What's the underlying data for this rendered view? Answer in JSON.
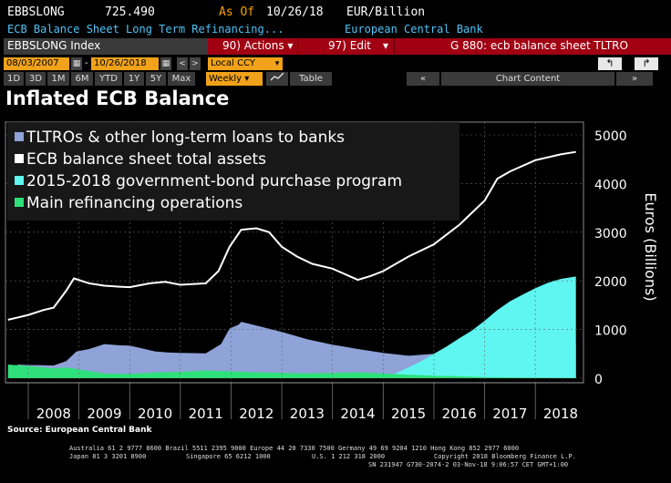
{
  "header": {
    "ticker": "EBBSLONG",
    "value": "725.490",
    "asof": "As Of",
    "date": "10/26/18",
    "units": "EUR/Billion",
    "description": "ECB Balance Sheet Long Term Refinancing...",
    "source_bank": "European Central Bank"
  },
  "toolbar": {
    "index_label": "EBBSLONG Index",
    "actions_label": "90) Actions ▾",
    "edit_label": "97) Edit",
    "edit_arrow": "▾",
    "chart_name": "G 880: ecb balance sheet TLTRO"
  },
  "range": {
    "start": "08/03/2007",
    "end": "10/26/2018",
    "currency": "Local CCY",
    "cal_glyph": "▦",
    "prev": "<",
    "next": ">",
    "dropdown": "▾",
    "undo_glyph": "↰",
    "redo_glyph": "↱"
  },
  "periods": [
    "1D",
    "3D",
    "1M",
    "6M",
    "YTD",
    "1Y",
    "5Y",
    "Max"
  ],
  "frequency": "Weekly ▾",
  "table_label": "Table",
  "chart_content_label": "Chart Content",
  "chart_content_arrows": "«",
  "chart_content_right": "»",
  "page_title": "Inflated ECB Balance",
  "source": "Source: European Central Bank",
  "footer": {
    "line1": "Australia 61 2 9777 8600 Brazil 5511 2395 9000 Europe 44 20 7330 7500 Germany 49 69 9204 1210 Hong Kong 852 2977 6000",
    "line2a": "Japan 81 3 3201 8900",
    "line2b": "Singapore 65 6212 1000",
    "line2c": "U.S. 1 212 318 2000",
    "line2d": "Copyright 2018 Bloomberg Finance L.P.",
    "line3": "SN 231947 G730-2074-2 03-Nov-18   9:06:57 CET   GMT+1:00"
  },
  "colors": {
    "tltro": "#8fa3d8",
    "total_assets": "#ffffff",
    "bond_program": "#5ff5f0",
    "mro": "#2fe07a",
    "accent": "#f0a21a",
    "actionbar": "#a00012"
  },
  "chart_data": {
    "type": "area",
    "ylabel": "Euros (Billions)",
    "ylim": [
      0,
      5000
    ],
    "yticks": [
      0,
      1000,
      2000,
      3000,
      4000,
      5000
    ],
    "xticks": [
      "2008",
      "2009",
      "2010",
      "2011",
      "2012",
      "2013",
      "2014",
      "2015",
      "2016",
      "2017",
      "2018"
    ],
    "legend_position": "top-left",
    "series": [
      {
        "name": "TLTROs & other long-term loans to banks",
        "kind": "area",
        "color": "#8fa3d8",
        "points": [
          [
            2007.6,
            150
          ],
          [
            2007.8,
            280
          ],
          [
            2008.0,
            270
          ],
          [
            2008.2,
            270
          ],
          [
            2008.5,
            260
          ],
          [
            2008.75,
            350
          ],
          [
            2008.95,
            550
          ],
          [
            2009.2,
            600
          ],
          [
            2009.5,
            700
          ],
          [
            2009.75,
            680
          ],
          [
            2010.0,
            670
          ],
          [
            2010.5,
            550
          ],
          [
            2010.75,
            530
          ],
          [
            2011.0,
            520
          ],
          [
            2011.5,
            510
          ],
          [
            2011.8,
            700
          ],
          [
            2011.97,
            1020
          ],
          [
            2012.15,
            1100
          ],
          [
            2012.2,
            1160
          ],
          [
            2012.5,
            1080
          ],
          [
            2013.0,
            950
          ],
          [
            2013.5,
            800
          ],
          [
            2014.0,
            690
          ],
          [
            2014.5,
            600
          ],
          [
            2015.0,
            520
          ],
          [
            2015.5,
            460
          ],
          [
            2016.0,
            500
          ],
          [
            2016.5,
            540
          ],
          [
            2016.75,
            600
          ],
          [
            2017.0,
            660
          ],
          [
            2017.2,
            760
          ],
          [
            2017.5,
            760
          ],
          [
            2018.0,
            740
          ],
          [
            2018.5,
            730
          ],
          [
            2018.8,
            725
          ]
        ]
      },
      {
        "name": "ECB balance sheet total assets",
        "kind": "line",
        "color": "#ffffff",
        "points": [
          [
            2007.6,
            1200
          ],
          [
            2007.8,
            1250
          ],
          [
            2008.0,
            1300
          ],
          [
            2008.3,
            1400
          ],
          [
            2008.5,
            1450
          ],
          [
            2008.75,
            1800
          ],
          [
            2008.9,
            2050
          ],
          [
            2009.2,
            1950
          ],
          [
            2009.5,
            1900
          ],
          [
            2009.8,
            1880
          ],
          [
            2010.0,
            1870
          ],
          [
            2010.4,
            1950
          ],
          [
            2010.7,
            1980
          ],
          [
            2011.0,
            1920
          ],
          [
            2011.5,
            1950
          ],
          [
            2011.75,
            2200
          ],
          [
            2011.97,
            2700
          ],
          [
            2012.2,
            3050
          ],
          [
            2012.5,
            3080
          ],
          [
            2012.75,
            3000
          ],
          [
            2013.0,
            2700
          ],
          [
            2013.3,
            2500
          ],
          [
            2013.6,
            2350
          ],
          [
            2014.0,
            2250
          ],
          [
            2014.5,
            2020
          ],
          [
            2014.75,
            2100
          ],
          [
            2015.0,
            2200
          ],
          [
            2015.5,
            2500
          ],
          [
            2016.0,
            2750
          ],
          [
            2016.5,
            3150
          ],
          [
            2017.0,
            3650
          ],
          [
            2017.25,
            4100
          ],
          [
            2017.5,
            4250
          ],
          [
            2018.0,
            4480
          ],
          [
            2018.5,
            4600
          ],
          [
            2018.8,
            4650
          ]
        ]
      },
      {
        "name": "2015-2018 government-bond purchase program",
        "kind": "area",
        "color": "#5ff5f0",
        "points": [
          [
            2014.9,
            0
          ],
          [
            2015.2,
            80
          ],
          [
            2015.5,
            220
          ],
          [
            2015.75,
            350
          ],
          [
            2016.0,
            500
          ],
          [
            2016.25,
            650
          ],
          [
            2016.5,
            820
          ],
          [
            2016.75,
            980
          ],
          [
            2017.0,
            1180
          ],
          [
            2017.25,
            1400
          ],
          [
            2017.5,
            1580
          ],
          [
            2017.75,
            1720
          ],
          [
            2018.0,
            1850
          ],
          [
            2018.25,
            1960
          ],
          [
            2018.5,
            2040
          ],
          [
            2018.8,
            2090
          ]
        ]
      },
      {
        "name": "Main refinancing operations",
        "kind": "area",
        "color": "#2fe07a",
        "points": [
          [
            2007.6,
            280
          ],
          [
            2008.0,
            250
          ],
          [
            2008.5,
            200
          ],
          [
            2008.75,
            220
          ],
          [
            2009.0,
            180
          ],
          [
            2009.5,
            100
          ],
          [
            2010.0,
            90
          ],
          [
            2010.5,
            120
          ],
          [
            2011.0,
            130
          ],
          [
            2011.5,
            160
          ],
          [
            2012.0,
            140
          ],
          [
            2012.5,
            120
          ],
          [
            2013.0,
            110
          ],
          [
            2013.5,
            100
          ],
          [
            2014.0,
            110
          ],
          [
            2014.5,
            120
          ],
          [
            2015.0,
            100
          ],
          [
            2015.5,
            70
          ],
          [
            2016.0,
            50
          ],
          [
            2016.5,
            40
          ],
          [
            2017.0,
            20
          ],
          [
            2018.0,
            10
          ],
          [
            2018.8,
            5
          ]
        ]
      }
    ]
  }
}
